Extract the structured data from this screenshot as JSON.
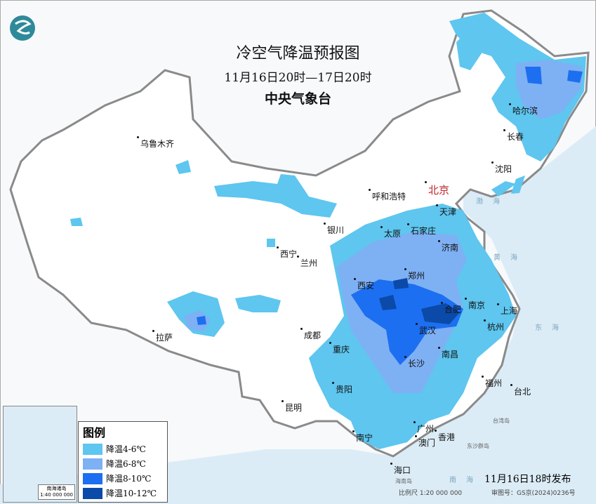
{
  "header": {
    "title": "冷空气降温预报图",
    "period": "11月16日20时—17日20时",
    "agency": "中央气象台"
  },
  "logo": {
    "icon": "cma-logo",
    "color": "#2e8a9a"
  },
  "cities": [
    {
      "name": "乌鲁木齐"
    },
    {
      "name": "呼和浩特"
    },
    {
      "name": "北京",
      "capital": true
    },
    {
      "name": "天津"
    },
    {
      "name": "沈阳"
    },
    {
      "name": "长春"
    },
    {
      "name": "哈尔滨"
    },
    {
      "name": "银川"
    },
    {
      "name": "太原"
    },
    {
      "name": "石家庄"
    },
    {
      "name": "济南"
    },
    {
      "name": "西宁"
    },
    {
      "name": "兰州"
    },
    {
      "name": "西安"
    },
    {
      "name": "郑州"
    },
    {
      "name": "南京"
    },
    {
      "name": "合肥"
    },
    {
      "name": "上海"
    },
    {
      "name": "武汉"
    },
    {
      "name": "杭州"
    },
    {
      "name": "拉萨"
    },
    {
      "name": "成都"
    },
    {
      "name": "重庆"
    },
    {
      "name": "长沙"
    },
    {
      "name": "南昌"
    },
    {
      "name": "贵阳"
    },
    {
      "name": "福州"
    },
    {
      "name": "台北"
    },
    {
      "name": "昆明"
    },
    {
      "name": "南宁"
    },
    {
      "name": "广州"
    },
    {
      "name": "澳门"
    },
    {
      "name": "香港"
    },
    {
      "name": "海口"
    }
  ],
  "seas": {
    "bohai": "渤海",
    "huanghai": "黄海",
    "donghai": "东海",
    "nanhai": "南海",
    "taiwan": "台湾岛",
    "dongsha": "东沙群岛",
    "hainan": "海南岛"
  },
  "legend": {
    "title": "图例",
    "items": [
      {
        "label": "降温4-6℃",
        "color": "#5ec6ef"
      },
      {
        "label": "降温6-8℃",
        "color": "#7eb0f4"
      },
      {
        "label": "降温8-10℃",
        "color": "#1c6ff0"
      },
      {
        "label": "降温10-12℃",
        "color": "#0b4aa8"
      }
    ]
  },
  "inset": {
    "label": "南海诸岛",
    "scale": "1:40 000 000"
  },
  "footer": {
    "issued": "11月16日18时发布",
    "scale": "比例尺 1:20 000 000",
    "approval": "审图号：GS京(2024)0236号"
  }
}
